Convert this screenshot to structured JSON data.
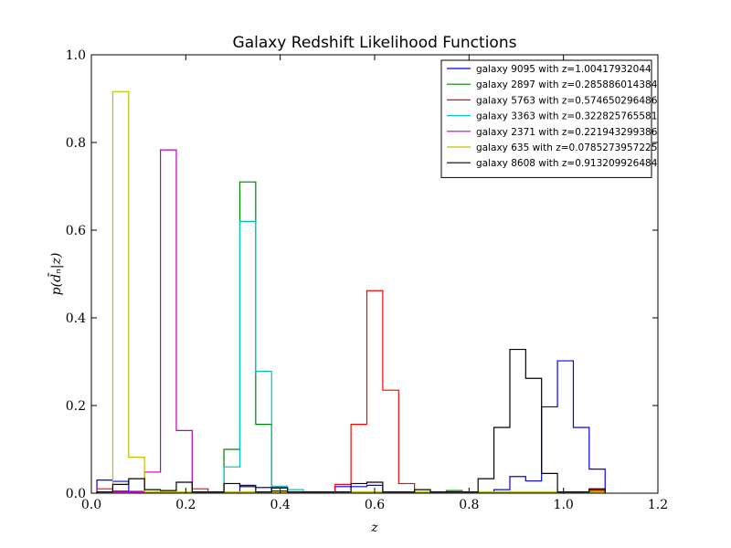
{
  "chart_data": {
    "type": "histogram-step",
    "title": "Galaxy Redshift Likelihood Functions",
    "xlabel": "z",
    "ylabel": "p(d̄ₙ|z)",
    "xlim": [
      0.0,
      1.2
    ],
    "ylim": [
      0.0,
      1.0
    ],
    "xticks": [
      0.0,
      0.2,
      0.4,
      0.6,
      0.8,
      1.0,
      1.2
    ],
    "xtick_labels": [
      "0.0",
      "0.2",
      "0.4",
      "0.6",
      "0.8",
      "1.0",
      "1.2"
    ],
    "yticks": [
      0.0,
      0.2,
      0.4,
      0.6,
      0.8,
      1.0
    ],
    "ytick_labels": [
      "0.0",
      "0.2",
      "0.4",
      "0.6",
      "0.8",
      "1.0"
    ],
    "grid": false,
    "legend_position": "top-right",
    "bin_edges": [
      0.0117,
      0.0453,
      0.079,
      0.1126,
      0.1463,
      0.1799,
      0.2135,
      0.2472,
      0.2808,
      0.3145,
      0.3481,
      0.3817,
      0.4154,
      0.449,
      0.4827,
      0.5163,
      0.5499,
      0.5836,
      0.6172,
      0.6509,
      0.6845,
      0.7181,
      0.7518,
      0.7854,
      0.8191,
      0.8527,
      0.8864,
      0.92,
      0.9536,
      0.9873,
      1.0209,
      1.0545,
      1.0882
    ],
    "series": [
      {
        "name": "galaxy 9095 with z=1.00417932044",
        "color": "#0000ff",
        "values": [
          0.03,
          0.027,
          0.004,
          0.003,
          0.003,
          0.003,
          0.003,
          0.003,
          0.003,
          0.018,
          0.013,
          0.005,
          0.003,
          0.003,
          0.003,
          0.015,
          0.015,
          0.018,
          0.003,
          0.003,
          0.003,
          0.003,
          0.003,
          0.003,
          0.003,
          0.008,
          0.038,
          0.028,
          0.197,
          0.302,
          0.15,
          0.055
        ]
      },
      {
        "name": "galaxy 2897 with z=0.285886014384",
        "color": "#008000",
        "values": [
          0.003,
          0.003,
          0.003,
          0.003,
          0.003,
          0.003,
          0.003,
          0.003,
          0.1,
          0.71,
          0.157,
          0.013,
          0.003,
          0.003,
          0.003,
          0.003,
          0.003,
          0.003,
          0.003,
          0.003,
          0.003,
          0.003,
          0.006,
          0.003,
          0.003,
          0.003,
          0.003,
          0.003,
          0.003,
          0.003,
          0.003,
          0.006
        ]
      },
      {
        "name": "galaxy 5763 with z=0.574650296486",
        "color": "#ff0000",
        "values": [
          0.01,
          0.005,
          0.003,
          0.003,
          0.003,
          0.003,
          0.01,
          0.003,
          0.003,
          0.003,
          0.003,
          0.003,
          0.003,
          0.003,
          0.003,
          0.02,
          0.157,
          0.462,
          0.235,
          0.022,
          0.003,
          0.003,
          0.003,
          0.003,
          0.003,
          0.003,
          0.003,
          0.003,
          0.003,
          0.003,
          0.003,
          0.008
        ]
      },
      {
        "name": "galaxy 3363 with z=0.322825765581",
        "color": "#00bfbf",
        "values": [
          0.003,
          0.003,
          0.003,
          0.003,
          0.003,
          0.003,
          0.003,
          0.003,
          0.06,
          0.62,
          0.278,
          0.016,
          0.008,
          0.003,
          0.003,
          0.003,
          0.003,
          0.003,
          0.003,
          0.003,
          0.003,
          0.003,
          0.003,
          0.003,
          0.003,
          0.003,
          0.003,
          0.003,
          0.003,
          0.003,
          0.003,
          0.003
        ]
      },
      {
        "name": "galaxy 2371 with z=0.221943299386",
        "color": "#bf00bf",
        "values": [
          0.003,
          0.003,
          0.003,
          0.048,
          0.783,
          0.143,
          0.003,
          0.003,
          0.003,
          0.003,
          0.003,
          0.003,
          0.003,
          0.003,
          0.003,
          0.003,
          0.003,
          0.003,
          0.003,
          0.003,
          0.003,
          0.003,
          0.003,
          0.003,
          0.003,
          0.003,
          0.003,
          0.003,
          0.003,
          0.003,
          0.003,
          0.003
        ]
      },
      {
        "name": "galaxy 635 with z=0.0785273957225",
        "color": "#bfbf00",
        "values": [
          0.003,
          0.916,
          0.082,
          0.003,
          0.003,
          0.003,
          0.003,
          0.003,
          0.003,
          0.003,
          0.003,
          0.003,
          0.003,
          0.003,
          0.003,
          0.003,
          0.003,
          0.003,
          0.003,
          0.003,
          0.003,
          0.003,
          0.003,
          0.003,
          0.003,
          0.003,
          0.003,
          0.003,
          0.003,
          0.003,
          0.003,
          0.003
        ]
      },
      {
        "name": "galaxy 8608 with z=0.913209926484",
        "color": "#000000",
        "values": [
          0.003,
          0.02,
          0.033,
          0.008,
          0.006,
          0.025,
          0.003,
          0.003,
          0.022,
          0.015,
          0.003,
          0.012,
          0.003,
          0.003,
          0.003,
          0.003,
          0.022,
          0.025,
          0.003,
          0.003,
          0.008,
          0.003,
          0.003,
          0.003,
          0.033,
          0.15,
          0.328,
          0.262,
          0.045,
          0.003,
          0.003,
          0.01
        ]
      }
    ]
  }
}
